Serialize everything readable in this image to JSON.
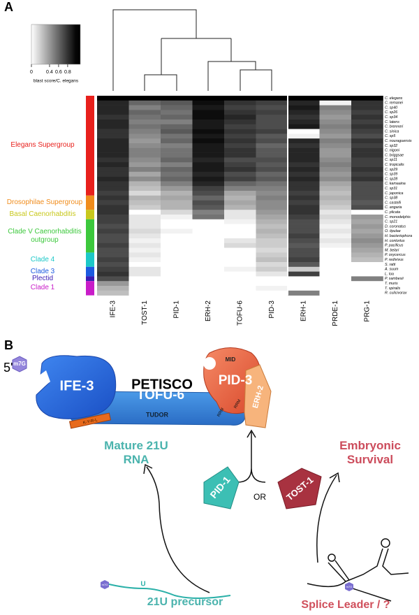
{
  "panel_label": "A",
  "chart_data": {
    "type": "heatmap",
    "colorbar_label": "blast score/C. elegans",
    "colorlim": [
      0,
      1.08
    ],
    "colorticks": [
      0,
      0.4,
      0.6,
      0.8
    ],
    "columns": [
      "IFE-3",
      "TOST-1",
      "PID-1",
      "ERH-2",
      "TOFU-6",
      "PID-3",
      "ERH-1",
      "PRDE-1",
      "PRG-1"
    ],
    "clades": [
      {
        "name": "Elegans Supergroup",
        "color": "#e8201c",
        "species": [
          "C. elegans",
          "C. remanei",
          "C. sp40",
          "C. sp26",
          "C. sp34",
          "C. latens",
          "C. brenneri",
          "C. sinica",
          "C. sp5",
          "C. nouraguensis",
          "C. sp32",
          "C. nigoni",
          "C. briggsae",
          "C. sp11",
          "C. tropicalis",
          "C. sp29",
          "C. sp39",
          "C. sp28",
          "C. kamaaina",
          "C. sp31",
          "C. japonica"
        ],
        "values": [
          [
            1,
            1,
            1,
            1,
            1,
            1,
            1,
            1,
            1
          ],
          [
            0.85,
            0.6,
            0.65,
            0.95,
            0.8,
            0.75,
            0.85,
            0.05,
            0.8
          ],
          [
            0.85,
            0.5,
            0.6,
            0.9,
            0.75,
            0.7,
            0.9,
            0.5,
            0.8
          ],
          [
            0.85,
            0.6,
            0.55,
            0.95,
            0.8,
            0.75,
            0.85,
            0.45,
            0.75
          ],
          [
            0.8,
            0.55,
            0.6,
            0.95,
            0.85,
            0.7,
            0.8,
            0.4,
            0.8
          ],
          [
            0.85,
            0.5,
            0.5,
            0.9,
            0.8,
            0.7,
            0.85,
            0.45,
            0.75
          ],
          [
            0.85,
            0.55,
            0.6,
            0.9,
            0.75,
            0.7,
            0.9,
            0.5,
            0.8
          ],
          [
            0.8,
            0.5,
            0.65,
            0.95,
            0.8,
            0.75,
            0,
            0.45,
            0.75
          ],
          [
            0.8,
            0.45,
            0.55,
            0.9,
            0.75,
            0.65,
            0.05,
            0.4,
            0.7
          ],
          [
            0.85,
            0.4,
            0.6,
            0.95,
            0.8,
            0.7,
            0.85,
            0.5,
            0.8
          ],
          [
            0.85,
            0.45,
            0.5,
            0.9,
            0.75,
            0.6,
            0.8,
            0.45,
            0.75
          ],
          [
            0.85,
            0.5,
            0.55,
            0.9,
            0.8,
            0.65,
            0.85,
            0.4,
            0.8
          ],
          [
            0.85,
            0.5,
            0.55,
            0.9,
            0.8,
            0.65,
            0.85,
            0.4,
            0.8
          ],
          [
            0.8,
            0.45,
            0.6,
            0.85,
            0.7,
            0.7,
            0.85,
            0.45,
            0.75
          ],
          [
            0.85,
            0.4,
            0.5,
            0.9,
            0.75,
            0.65,
            0.8,
            0.5,
            0.75
          ],
          [
            0.8,
            0.5,
            0.6,
            0.9,
            0.8,
            0.7,
            0.85,
            0.45,
            0.8
          ],
          [
            0.8,
            0.35,
            0.55,
            0.85,
            0.7,
            0.6,
            0.8,
            0.4,
            0.75
          ],
          [
            0.85,
            0.45,
            0.6,
            0.9,
            0.75,
            0.65,
            0.85,
            0.45,
            0.8
          ],
          [
            0.8,
            0.3,
            0.5,
            0.85,
            0.6,
            0.55,
            0.8,
            0.35,
            0.7
          ],
          [
            0.8,
            0.25,
            0.4,
            0.75,
            0.5,
            0.5,
            0.8,
            0.3,
            0.7
          ],
          [
            0.75,
            0.15,
            0.3,
            0.7,
            0.35,
            0.45,
            0.75,
            0.25,
            0.7
          ]
        ]
      },
      {
        "name": "Drosophilae Supergroup",
        "color": "#f08c1c",
        "species": [
          "C. sp38",
          "C. castelli",
          "C. angaria"
        ],
        "values": [
          [
            0.8,
            0.3,
            0.35,
            0.6,
            0.3,
            0.5,
            0.8,
            0.3,
            0.7
          ],
          [
            0.75,
            0.25,
            0.3,
            0.7,
            0.35,
            0.45,
            0.75,
            0.25,
            0.65
          ],
          [
            0.8,
            0.2,
            0.3,
            0.65,
            0.3,
            0.45,
            0.8,
            0.2,
            0.7
          ]
        ]
      },
      {
        "name": "Basal Caenorhabditis",
        "color": "#c8c81c",
        "species": [
          "C. plicata",
          "C. monodelphis"
        ],
        "values": [
          [
            0.8,
            0,
            0.15,
            0.5,
            0.1,
            0.4,
            0.8,
            0.1,
            0
          ],
          [
            0.75,
            0.1,
            0.05,
            0.55,
            0.1,
            0.35,
            0.75,
            0.15,
            0.4
          ]
        ]
      },
      {
        "name": "Clade V Caenorhabditis outgroup",
        "color": "#3cc83c",
        "species": [
          "C. sp21",
          "D. coronatus",
          "O. tipulae",
          "H. bacteriophora",
          "H. contortus",
          "P. pacificus",
          "M. belari"
        ],
        "values": [
          [
            0.75,
            0.1,
            0,
            0,
            0.05,
            0.3,
            0.7,
            0.1,
            0.35
          ],
          [
            0.7,
            0.1,
            0,
            0,
            0,
            0.25,
            0.7,
            0.05,
            0.4
          ],
          [
            0.75,
            0.15,
            0.05,
            0,
            0,
            0.3,
            0.7,
            0.1,
            0.35
          ],
          [
            0.7,
            0.1,
            0,
            0,
            0,
            0.25,
            0.75,
            0.05,
            0.4
          ],
          [
            0.7,
            0.05,
            0,
            0,
            0.1,
            0.2,
            0.7,
            0.1,
            0.45
          ],
          [
            0.75,
            0.1,
            0,
            0,
            0.15,
            0.2,
            0.65,
            0.05,
            0.4
          ],
          [
            0.7,
            0.05,
            0,
            0,
            0,
            0.15,
            0.7,
            0,
            0.35
          ]
        ]
      },
      {
        "name": "Clade 4",
        "color": "#1cc8c8",
        "species": [
          "P. oxycercus",
          "P. redivivus",
          "S. ratti"
        ],
        "values": [
          [
            0.7,
            0.1,
            0,
            0,
            0,
            0.2,
            0.7,
            0,
            0.3
          ],
          [
            0.75,
            0.05,
            0,
            0,
            0,
            0.25,
            0.75,
            0,
            0.25
          ],
          [
            0.7,
            0,
            0,
            0,
            0,
            0.15,
            0.65,
            0,
            0
          ]
        ]
      },
      {
        "name": "Clade 3",
        "color": "#1c5ae0",
        "species": [
          "A. suum",
          "L. loa"
        ],
        "values": [
          [
            0.75,
            0.1,
            0,
            0,
            0.05,
            0.2,
            0.2,
            0,
            0
          ],
          [
            0.8,
            0.1,
            0,
            0,
            0,
            0.1,
            0.75,
            0,
            0
          ]
        ]
      },
      {
        "name": "Plectid",
        "color": "#3a1cb4",
        "species": [
          "P. sambesii"
        ],
        "values": [
          [
            0.7,
            0,
            0,
            0,
            0,
            0,
            0,
            0,
            0.5
          ]
        ]
      },
      {
        "name": "Clade 1",
        "color": "#c81cc8",
        "species": [
          "T. muris",
          "T. spiralis",
          "R. culicivorax"
        ],
        "values": [
          [
            0.4,
            0,
            0,
            0,
            0,
            0,
            0,
            0,
            0
          ],
          [
            0.3,
            0,
            0,
            0,
            0,
            0.05,
            0,
            0,
            0
          ],
          [
            0.25,
            0,
            0,
            0,
            0,
            0,
            0.5,
            0,
            0
          ]
        ]
      }
    ]
  },
  "diagram": {
    "label": "B",
    "five_prime": "5'",
    "cap": "m7G",
    "complex": "PETISCO",
    "ife3": "IFE-3",
    "tofu6": "TOFU-6",
    "tudor": "TUDOR",
    "motif": "K-Y-R-L",
    "pid3": "PID-3",
    "mid": "MID",
    "rrm": "RRM",
    "erh2": "ERH-2",
    "or": "OR",
    "pid1": "PID-1",
    "tost1": "TOST-1",
    "mature": "Mature 21U RNA",
    "survival": "Embryonic Survival",
    "u": "U",
    "precursor": "21U precursor",
    "splice": "Splice Leader / ?"
  }
}
